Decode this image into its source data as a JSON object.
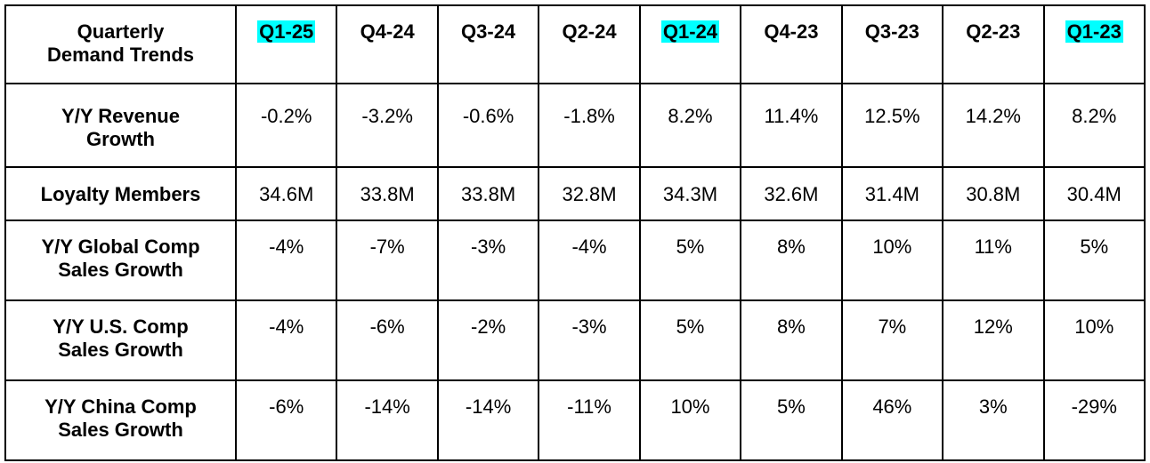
{
  "table": {
    "corner_label": [
      "Quarterly",
      "Demand Trends"
    ],
    "columns": [
      {
        "label": "Q1-25",
        "highlight": true
      },
      {
        "label": "Q4-24",
        "highlight": false
      },
      {
        "label": "Q3-24",
        "highlight": false
      },
      {
        "label": "Q2-24",
        "highlight": false
      },
      {
        "label": "Q1-24",
        "highlight": true
      },
      {
        "label": "Q4-23",
        "highlight": false
      },
      {
        "label": "Q3-23",
        "highlight": false
      },
      {
        "label": "Q2-23",
        "highlight": false
      },
      {
        "label": "Q1-23",
        "highlight": true
      }
    ],
    "highlight_color": "#00ffff",
    "rows": [
      {
        "label": [
          "Y/Y Revenue",
          "Growth"
        ],
        "values": [
          "-0.2%",
          "-3.2%",
          "-0.6%",
          "-1.8%",
          "8.2%",
          "11.4%",
          "12.5%",
          "14.2%",
          "8.2%"
        ]
      },
      {
        "label": [
          "Loyalty Members"
        ],
        "values": [
          "34.6M",
          "33.8M",
          "33.8M",
          "32.8M",
          "34.3M",
          "32.6M",
          "31.4M",
          "30.8M",
          "30.4M"
        ]
      },
      {
        "label": [
          "Y/Y Global Comp",
          "Sales Growth"
        ],
        "values": [
          "-4%",
          "-7%",
          "-3%",
          "-4%",
          "5%",
          "8%",
          "10%",
          "11%",
          "5%"
        ]
      },
      {
        "label": [
          "Y/Y U.S. Comp",
          "Sales Growth"
        ],
        "values": [
          "-4%",
          "-6%",
          "-2%",
          "-3%",
          "5%",
          "8%",
          "7%",
          "12%",
          "10%"
        ]
      },
      {
        "label": [
          "Y/Y China Comp",
          "Sales Growth"
        ],
        "values": [
          "-6%",
          "-14%",
          "-14%",
          "-11%",
          "10%",
          "5%",
          "46%",
          "3%",
          "-29%"
        ]
      }
    ]
  }
}
